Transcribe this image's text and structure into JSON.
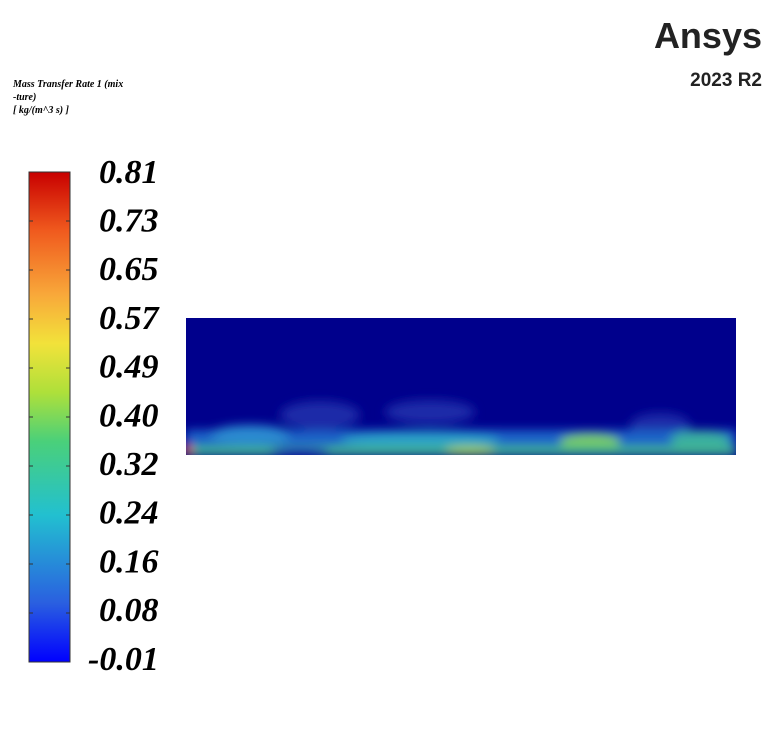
{
  "legend": {
    "title": [
      "Mass Transfer Rate 1 (mix",
      "-ture)",
      "[ kg/(m^3 s) ]"
    ],
    "ticks": [
      "0.81",
      "0.73",
      "0.65",
      "0.57",
      "0.49",
      "0.40",
      "0.32",
      "0.24",
      "0.16",
      "0.08",
      "-0.01"
    ]
  },
  "brand": {
    "name": "Ansys",
    "version": "2023 R2"
  }
}
